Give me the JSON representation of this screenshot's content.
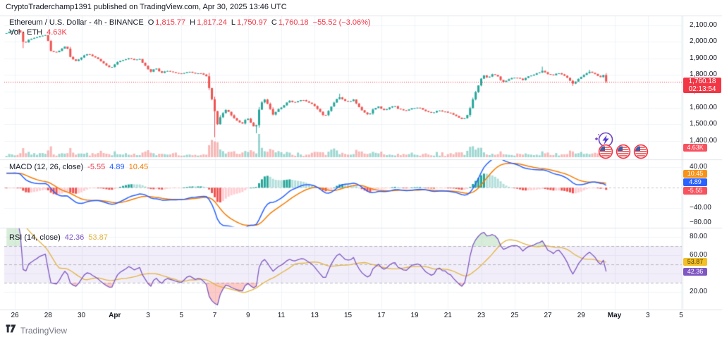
{
  "header": {
    "text": "CryptoTraderchamp1391 published on TradingView.com, Apr 30, 2025 13:46 UTC"
  },
  "symbol_legend": {
    "title": "Ethereum / U.S. Dollar - 4h - BINANCE",
    "open_label": "O",
    "open": "1,815.77",
    "high_label": "H",
    "high": "1,817.24",
    "low_label": "L",
    "low": "1,750.97",
    "close_label": "C",
    "close": "1,760.18",
    "change": "−55.52 (−3.06%)"
  },
  "volume_legend": {
    "label": "Vol · ETH",
    "value": "4.63K"
  },
  "macd_legend": {
    "label": "MACD (12, 26, close)",
    "hist_value": "-5.55",
    "macd_value": "4.89",
    "signal_value": "10.45"
  },
  "rsi_legend": {
    "label": "RSI (14, close)",
    "rsi_value": "42.36",
    "ma_value": "53.87"
  },
  "price_axis": {
    "ticks": [
      {
        "label": "2,100.00",
        "value": 2100
      },
      {
        "label": "2,000.00",
        "value": 2000
      },
      {
        "label": "1,900.00",
        "value": 1900
      },
      {
        "label": "1,800.00",
        "value": 1800
      },
      {
        "label": "1,700.00",
        "value": 1700
      },
      {
        "label": "1,600.00",
        "value": 1600
      },
      {
        "label": "1,500.00",
        "value": 1500
      },
      {
        "label": "1,400.00",
        "value": 1400
      }
    ],
    "last_price_badge": {
      "price": "1,760.18",
      "countdown": "02:13:54",
      "color": "#F23645"
    },
    "volume_badge": {
      "label": "4.63K",
      "color": "#F7525F"
    }
  },
  "macd_axis": {
    "ticks": [
      {
        "label": "40.00",
        "value": 40
      },
      {
        "label": "−40.00",
        "value": -40
      },
      {
        "label": "−80.00",
        "value": -80
      }
    ],
    "badges": [
      {
        "label": "10.45",
        "color": "#F7931A",
        "text": "#ffffff"
      },
      {
        "label": "4.89",
        "color": "#2962FF",
        "text": "#ffffff"
      },
      {
        "label": "-5.55",
        "color": "#F7525F",
        "text": "#ffffff"
      }
    ]
  },
  "rsi_axis": {
    "ticks": [
      {
        "label": "80.00",
        "value": 80
      },
      {
        "label": "60.00",
        "value": 60
      },
      {
        "label": "20.00",
        "value": 20
      }
    ],
    "badges": [
      {
        "label": "53.87",
        "color": "#F2C029",
        "text": "#4a3a00"
      },
      {
        "label": "42.36",
        "color": "#7E57C2",
        "text": "#ffffff"
      }
    ]
  },
  "time_axis": {
    "ticks": [
      {
        "label": "26",
        "day": 0
      },
      {
        "label": "28",
        "day": 2
      },
      {
        "label": "30",
        "day": 4
      },
      {
        "label": "Apr",
        "day": 6,
        "bold": true
      },
      {
        "label": "3",
        "day": 8
      },
      {
        "label": "5",
        "day": 10
      },
      {
        "label": "7",
        "day": 12
      },
      {
        "label": "9",
        "day": 14
      },
      {
        "label": "11",
        "day": 16
      },
      {
        "label": "13",
        "day": 18
      },
      {
        "label": "15",
        "day": 20
      },
      {
        "label": "17",
        "day": 22
      },
      {
        "label": "19",
        "day": 24
      },
      {
        "label": "21",
        "day": 26
      },
      {
        "label": "23",
        "day": 28
      },
      {
        "label": "25",
        "day": 30
      },
      {
        "label": "27",
        "day": 32
      },
      {
        "label": "29",
        "day": 34
      },
      {
        "label": "May",
        "day": 36,
        "bold": true
      },
      {
        "label": "3",
        "day": 38
      },
      {
        "label": "5",
        "day": 40
      }
    ]
  },
  "watermark": {
    "brand": "TradingView"
  },
  "icons": {
    "boost": "lightning-bolt-in-circle",
    "reaction": "us-flag-circle",
    "reaction_count": 3
  },
  "colors": {
    "up": "#26A69A",
    "down": "#EF5350",
    "vol_up": "rgba(38,166,154,0.45)",
    "vol_down": "rgba(239,83,80,0.42)",
    "macd_line": "#2962FF",
    "signal_line": "#F57C00",
    "hist_pos_grow": "#26A69A",
    "hist_pos_fall": "#B2DFDB",
    "hist_neg_grow": "#EF5350",
    "hist_neg_fall": "#FFCDD2",
    "rsi_line": "#7E57C2",
    "rsi_ma_line": "#E3B341",
    "rsi_band": "rgba(126,87,194,0.10)",
    "over_fill": "rgba(76,175,80,0.22)",
    "under_fill": "rgba(244,67,54,0.28)",
    "last_price": "#F23645",
    "grid": "#F0F3FA",
    "separator": "#E0E3EB",
    "dashed": "#B2B5BE",
    "text": "#131722",
    "red_text": "#F23645"
  },
  "chart_data": [
    {
      "type": "candlestick",
      "title": "Ethereum / U.S. Dollar",
      "interval": "4h",
      "exchange": "BINANCE",
      "last_bar": {
        "open": 1815.77,
        "high": 1817.24,
        "low": 1750.97,
        "close": 1760.18,
        "change": -55.52,
        "change_pct": -3.06
      },
      "ylim": [
        1380,
        2115
      ],
      "x_range_days": [
        "Mar 25 2025",
        "May 5 2025"
      ],
      "day0": "Mar 26 2025 00:00 UTC",
      "price_anchors": [
        [
          -5.5,
          1890
        ],
        [
          -4.5,
          1945
        ],
        [
          -3.5,
          1990
        ],
        [
          -2.5,
          2015
        ],
        [
          -1.5,
          2032
        ],
        [
          -0.9,
          2048
        ],
        [
          -0.55,
          2052
        ],
        [
          -0.2,
          2066
        ],
        [
          0.1,
          2074
        ],
        [
          0.35,
          2058
        ],
        [
          0.55,
          1984
        ],
        [
          0.8,
          2014
        ],
        [
          1.1,
          2024
        ],
        [
          1.5,
          2034
        ],
        [
          1.9,
          2042
        ],
        [
          2.15,
          1948
        ],
        [
          2.45,
          1932
        ],
        [
          2.8,
          1958
        ],
        [
          3.1,
          1978
        ],
        [
          3.35,
          1902
        ],
        [
          3.7,
          1882
        ],
        [
          4.0,
          1906
        ],
        [
          4.35,
          1928
        ],
        [
          4.7,
          1912
        ],
        [
          5.0,
          1896
        ],
        [
          5.4,
          1862
        ],
        [
          5.75,
          1842
        ],
        [
          6.1,
          1874
        ],
        [
          6.5,
          1890
        ],
        [
          6.9,
          1902
        ],
        [
          7.2,
          1888
        ],
        [
          7.5,
          1896
        ],
        [
          7.85,
          1852
        ],
        [
          8.15,
          1820
        ],
        [
          8.45,
          1842
        ],
        [
          8.8,
          1812
        ],
        [
          9.2,
          1826
        ],
        [
          9.6,
          1815
        ],
        [
          10.0,
          1806
        ],
        [
          10.4,
          1820
        ],
        [
          10.8,
          1810
        ],
        [
          11.2,
          1806
        ],
        [
          11.5,
          1792
        ],
        [
          11.75,
          1685
        ],
        [
          11.95,
          1608
        ],
        [
          12.15,
          1495
        ],
        [
          12.4,
          1558
        ],
        [
          12.7,
          1590
        ],
        [
          13.0,
          1555
        ],
        [
          13.35,
          1522
        ],
        [
          13.65,
          1505
        ],
        [
          13.95,
          1538
        ],
        [
          14.2,
          1508
        ],
        [
          14.45,
          1470
        ],
        [
          14.7,
          1605
        ],
        [
          14.95,
          1658
        ],
        [
          15.2,
          1618
        ],
        [
          15.5,
          1558
        ],
        [
          15.8,
          1588
        ],
        [
          16.1,
          1610
        ],
        [
          16.45,
          1645
        ],
        [
          16.8,
          1632
        ],
        [
          17.2,
          1648
        ],
        [
          17.6,
          1638
        ],
        [
          17.95,
          1615
        ],
        [
          18.25,
          1588
        ],
        [
          18.6,
          1545
        ],
        [
          18.85,
          1585
        ],
        [
          19.15,
          1628
        ],
        [
          19.45,
          1668
        ],
        [
          19.75,
          1645
        ],
        [
          20.05,
          1638
        ],
        [
          20.35,
          1650
        ],
        [
          20.65,
          1608
        ],
        [
          20.95,
          1575
        ],
        [
          21.25,
          1558
        ],
        [
          21.55,
          1595
        ],
        [
          21.85,
          1608
        ],
        [
          22.15,
          1585
        ],
        [
          22.45,
          1600
        ],
        [
          22.75,
          1615
        ],
        [
          23.05,
          1592
        ],
        [
          23.45,
          1582
        ],
        [
          23.85,
          1598
        ],
        [
          24.25,
          1602
        ],
        [
          24.65,
          1580
        ],
        [
          25.05,
          1570
        ],
        [
          25.45,
          1585
        ],
        [
          25.85,
          1575
        ],
        [
          26.25,
          1565
        ],
        [
          26.6,
          1545
        ],
        [
          26.9,
          1528
        ],
        [
          27.2,
          1560
        ],
        [
          27.5,
          1650
        ],
        [
          27.8,
          1728
        ],
        [
          28.1,
          1800
        ],
        [
          28.4,
          1783
        ],
        [
          28.7,
          1806
        ],
        [
          29.0,
          1790
        ],
        [
          29.3,
          1755
        ],
        [
          29.6,
          1770
        ],
        [
          29.9,
          1786
        ],
        [
          30.2,
          1780
        ],
        [
          30.5,
          1770
        ],
        [
          30.8,
          1792
        ],
        [
          31.1,
          1800
        ],
        [
          31.4,
          1812
        ],
        [
          31.7,
          1824
        ],
        [
          32.0,
          1806
        ],
        [
          32.3,
          1796
        ],
        [
          32.6,
          1812
        ],
        [
          32.9,
          1798
        ],
        [
          33.2,
          1782
        ],
        [
          33.5,
          1745
        ],
        [
          33.8,
          1772
        ],
        [
          34.1,
          1794
        ],
        [
          34.45,
          1820
        ],
        [
          34.75,
          1810
        ],
        [
          35.0,
          1796
        ],
        [
          35.17,
          1786
        ],
        [
          35.33,
          1800
        ],
        [
          35.5,
          1760.18
        ]
      ],
      "wick_events": [
        {
          "day": 0.55,
          "low": 1962
        },
        {
          "day": 12.08,
          "low": 1422
        },
        {
          "day": 14.42,
          "low": 1446
        },
        {
          "day": 19.45,
          "high": 1686
        },
        {
          "day": 31.7,
          "high": 1850
        },
        {
          "day": 33.5,
          "low": 1733
        },
        {
          "day": 34.45,
          "high": 1831
        },
        {
          "day": 35.5,
          "low": 1750.97
        }
      ],
      "volume": {
        "unit": "ETH",
        "last": "4.63K"
      }
    },
    {
      "type": "line",
      "name": "MACD",
      "params": [
        12,
        26,
        9
      ],
      "values": {
        "histogram": -5.55,
        "macd": 4.89,
        "signal": 10.45
      },
      "ylim": [
        -95,
        50
      ],
      "gridlines": [
        40,
        -40,
        -80
      ],
      "derived_from": "chart_data.0.price_anchors"
    },
    {
      "type": "line",
      "name": "RSI",
      "params": [
        14
      ],
      "ma_period": 14,
      "values": {
        "rsi": 42.36,
        "ma": 53.87
      },
      "band_levels": [
        70,
        50,
        30
      ],
      "ylim": [
        12,
        88
      ],
      "gridlines": [
        80,
        60,
        40,
        20
      ],
      "derived_from": "chart_data.0.price_anchors"
    }
  ]
}
